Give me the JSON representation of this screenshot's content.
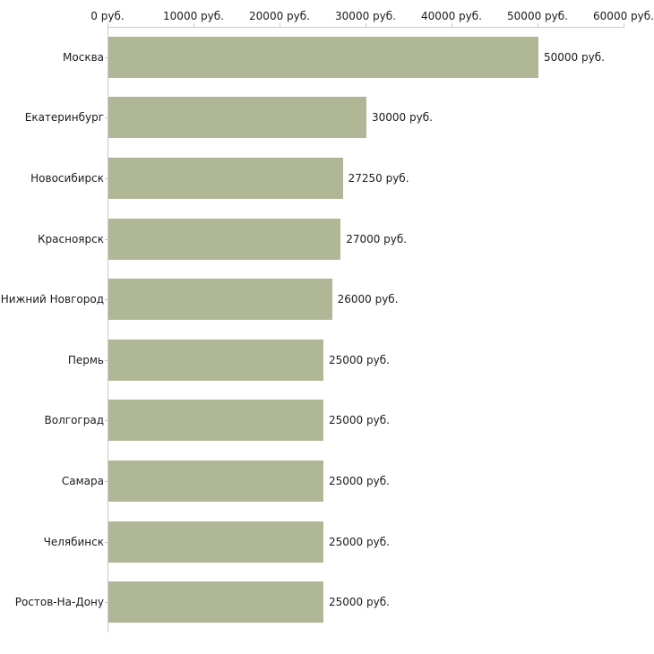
{
  "chart_data": {
    "type": "bar",
    "orientation": "horizontal",
    "title": "",
    "xlabel": "",
    "ylabel": "",
    "xlim": [
      0,
      60000
    ],
    "grid": false,
    "legend": false,
    "x_ticks": [
      {
        "value": 0,
        "label": "0 руб."
      },
      {
        "value": 10000,
        "label": "10000 руб."
      },
      {
        "value": 20000,
        "label": "20000 руб."
      },
      {
        "value": 30000,
        "label": "30000 руб."
      },
      {
        "value": 40000,
        "label": "40000 руб."
      },
      {
        "value": 50000,
        "label": "50000 руб."
      },
      {
        "value": 60000,
        "label": "60000 руб."
      }
    ],
    "categories": [
      "Москва",
      "Екатеринбург",
      "Новосибирск",
      "Красноярск",
      "Нижний Новгород",
      "Пермь",
      "Волгоград",
      "Самара",
      "Челябинск",
      "Ростов-На-Дону"
    ],
    "values": [
      50000,
      30000,
      27250,
      27000,
      26000,
      25000,
      25000,
      25000,
      25000,
      25000
    ],
    "value_labels": [
      "50000 руб.",
      "30000 руб.",
      "27250 руб.",
      "27000 руб.",
      "26000 руб.",
      "25000 руб.",
      "25000 руб.",
      "25000 руб.",
      "25000 руб.",
      "25000 руб."
    ],
    "bar_color": "#b0b796",
    "axis_color": "#c9c9c9",
    "text_color": "#1a1a1a",
    "background_color": "#ffffff"
  }
}
